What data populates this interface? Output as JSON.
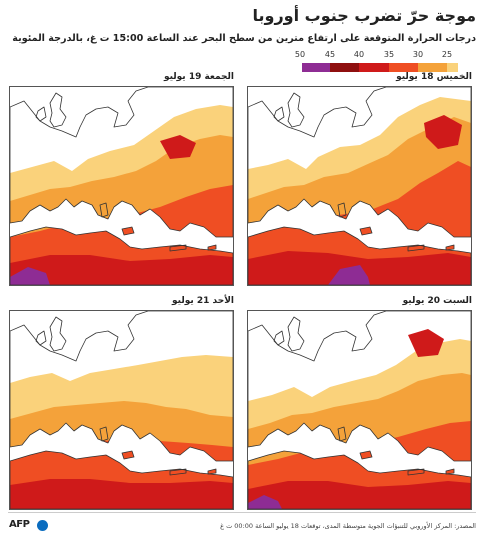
{
  "title": "موجة حرّ تضرب جنوب أوروبا",
  "subtitle": "درجات الحرارة المتوقعة على ارتفاع مترين من سطح البحر عند الساعة 15:00 ت غ، بالدرجة المئوية",
  "legend": {
    "labels": [
      "50",
      "45",
      "40",
      "35",
      "30",
      "25"
    ],
    "colors": [
      "#8e2c94",
      "#8f0f0f",
      "#cf1a1a",
      "#ef4e23",
      "#f4a23a",
      "#fad27b"
    ]
  },
  "panels": [
    {
      "label": "الخميس 18 يوليو",
      "heat": 0
    },
    {
      "label": "الجمعة 19 يوليو",
      "heat": 1
    },
    {
      "label": "السبت 20 يوليو",
      "heat": 2
    },
    {
      "label": "الأحد 21 يوليو",
      "heat": 3
    }
  ],
  "source": "المصدر: المركز الأوروبي للتنبؤات الجوية متوسطة المدى، توقعات 18 يوليو الساعة 00:00 ت غ",
  "logo_text": "AFP",
  "colors": {
    "land": "#ffffff",
    "sea": "#ffffff",
    "coast": "#333333"
  }
}
